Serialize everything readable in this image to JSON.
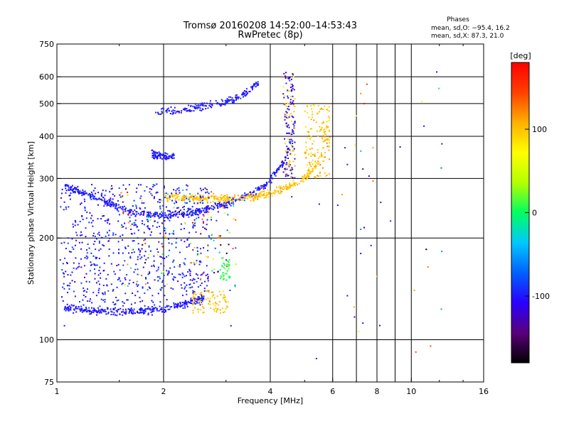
{
  "chart_data": {
    "type": "scatter",
    "title": "Tromsø 20160208 14:52:00–14:53:43",
    "subtitle": "RwPretec (8p)",
    "xlabel": "Frequency [MHz]",
    "ylabel": "Stationary phase Virtual Height [km]",
    "x_scale": "log",
    "y_scale": "log",
    "xlim": [
      1,
      16
    ],
    "ylim": [
      75,
      750
    ],
    "x_ticks": [
      {
        "value": 1,
        "label": "1"
      },
      {
        "value": 2,
        "label": "2"
      },
      {
        "value": 4,
        "label": "4"
      },
      {
        "value": 6,
        "label": "6"
      },
      {
        "value": 8,
        "label": "8"
      },
      {
        "value": 10,
        "label": "10"
      },
      {
        "value": 16,
        "label": "16"
      }
    ],
    "x_major_gridlines": [
      2,
      4,
      6,
      8,
      10
    ],
    "x_minor_gridlines": [
      7,
      9
    ],
    "y_ticks": [
      {
        "value": 750,
        "label": "750"
      },
      {
        "value": 600,
        "label": "600"
      },
      {
        "value": 500,
        "label": "500"
      },
      {
        "value": 400,
        "label": "400"
      },
      {
        "value": 300,
        "label": "300"
      },
      {
        "value": 200,
        "label": "200"
      },
      {
        "value": 100,
        "label": "100"
      },
      {
        "value": 75,
        "label": "75"
      }
    ],
    "y_gridlines": [
      600,
      500,
      400,
      300,
      200,
      100
    ],
    "grid": true,
    "stats": {
      "header": "Phases",
      "line_o": "mean, sd,O: −95.4, 16.2",
      "line_x": "mean, sd,X:  87.3, 21.0"
    },
    "colorbar": {
      "label": "[deg]",
      "range": [
        -180,
        180
      ],
      "ticks": [
        {
          "value": 100,
          "label": "100"
        },
        {
          "value": 0,
          "label": "0"
        },
        {
          "value": -100,
          "label": "-100"
        }
      ],
      "colors": [
        "#000000",
        "#5a007a",
        "#2a00ff",
        "#0060ff",
        "#00c8ff",
        "#00ff60",
        "#b4ff00",
        "#ffff00",
        "#ffb000",
        "#ff4000",
        "#ff0000"
      ]
    },
    "traces": [
      {
        "name_hint": "F2 O-mode",
        "x": [
          1.05,
          1.3,
          1.6,
          2.0,
          2.5,
          3.0,
          3.5,
          4.0,
          4.4,
          4.7
        ],
        "y": [
          285,
          262,
          240,
          233,
          240,
          252,
          268,
          295,
          340,
          440
        ],
        "phase": -100
      },
      {
        "name_hint": "F2 X-mode",
        "x": [
          2.0,
          2.5,
          3.0,
          3.6,
          4.2,
          4.8,
          5.3,
          5.6,
          5.8
        ],
        "y": [
          265,
          262,
          262,
          265,
          275,
          292,
          318,
          360,
          440
        ],
        "phase": 100
      },
      {
        "name_hint": "lower branch",
        "x": [
          1.05,
          1.3,
          1.6,
          2.0,
          2.3,
          2.6
        ],
        "y": [
          124,
          122,
          121,
          123,
          128,
          133
        ],
        "phase": -100
      },
      {
        "name_hint": "multi-hop",
        "x": [
          1.9,
          2.2,
          2.6,
          3.0,
          3.4,
          3.7
        ],
        "y": [
          470,
          478,
          490,
          505,
          535,
          575
        ],
        "phase": -100
      },
      {
        "name_hint": "blob",
        "x": [
          1.85,
          1.95,
          2.05,
          2.15
        ],
        "y": [
          355,
          350,
          348,
          352
        ],
        "phase": -100
      }
    ]
  }
}
